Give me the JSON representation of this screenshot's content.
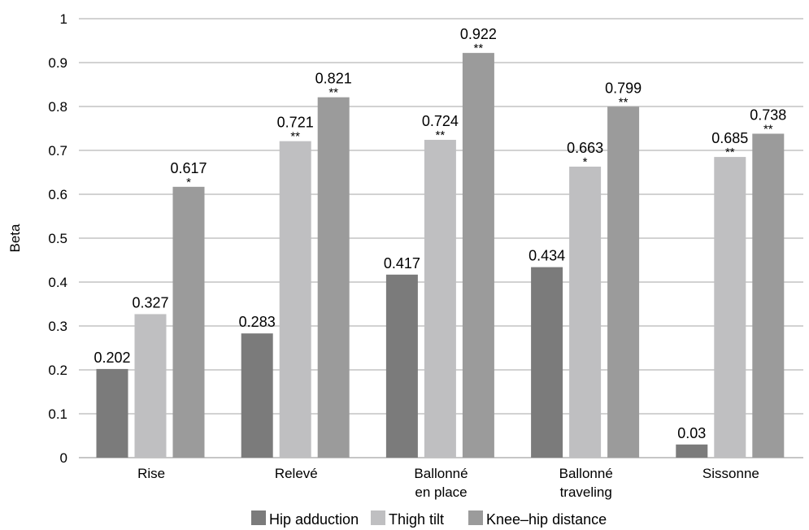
{
  "chart_data": {
    "type": "bar",
    "categories": [
      [
        "Rise"
      ],
      [
        "Relevé"
      ],
      [
        "Ballonné",
        "en place"
      ],
      [
        "Ballonné",
        "traveling"
      ],
      [
        "Sissonne"
      ]
    ],
    "series": [
      {
        "name": "Hip adduction",
        "color": "#7b7b7b",
        "values": [
          0.202,
          0.283,
          0.417,
          0.434,
          0.03
        ],
        "labels": [
          "0.202",
          "0.283",
          "0.417",
          "0.434",
          "0.03"
        ],
        "significance": [
          "",
          "",
          "",
          "",
          ""
        ]
      },
      {
        "name": "Thigh tilt",
        "color": "#bfbfc1",
        "values": [
          0.327,
          0.721,
          0.724,
          0.663,
          0.685
        ],
        "labels": [
          "0.327",
          "0.721",
          "0.724",
          "0.663",
          "0.685"
        ],
        "significance": [
          "",
          "**",
          "**",
          "*",
          "**"
        ]
      },
      {
        "name": "Knee–hip distance",
        "color": "#9b9b9b",
        "values": [
          0.617,
          0.821,
          0.922,
          0.799,
          0.738
        ],
        "labels": [
          "0.617",
          "0.821",
          "0.922",
          "0.799",
          "0.738"
        ],
        "significance": [
          "*",
          "**",
          "**",
          "**",
          "**"
        ]
      }
    ],
    "title": "",
    "xlabel": "",
    "ylabel": "Beta",
    "ylim": [
      0,
      1
    ],
    "yticks": [
      0,
      0.1,
      0.2,
      0.3,
      0.4,
      0.5,
      0.6,
      0.7,
      0.8,
      0.9,
      1
    ],
    "ytick_labels": [
      "0",
      "0.1",
      "0.2",
      "0.3",
      "0.4",
      "0.5",
      "0.6",
      "0.7",
      "0.8",
      "0.9",
      "1"
    ],
    "grid": true,
    "legend_position": "bottom"
  }
}
